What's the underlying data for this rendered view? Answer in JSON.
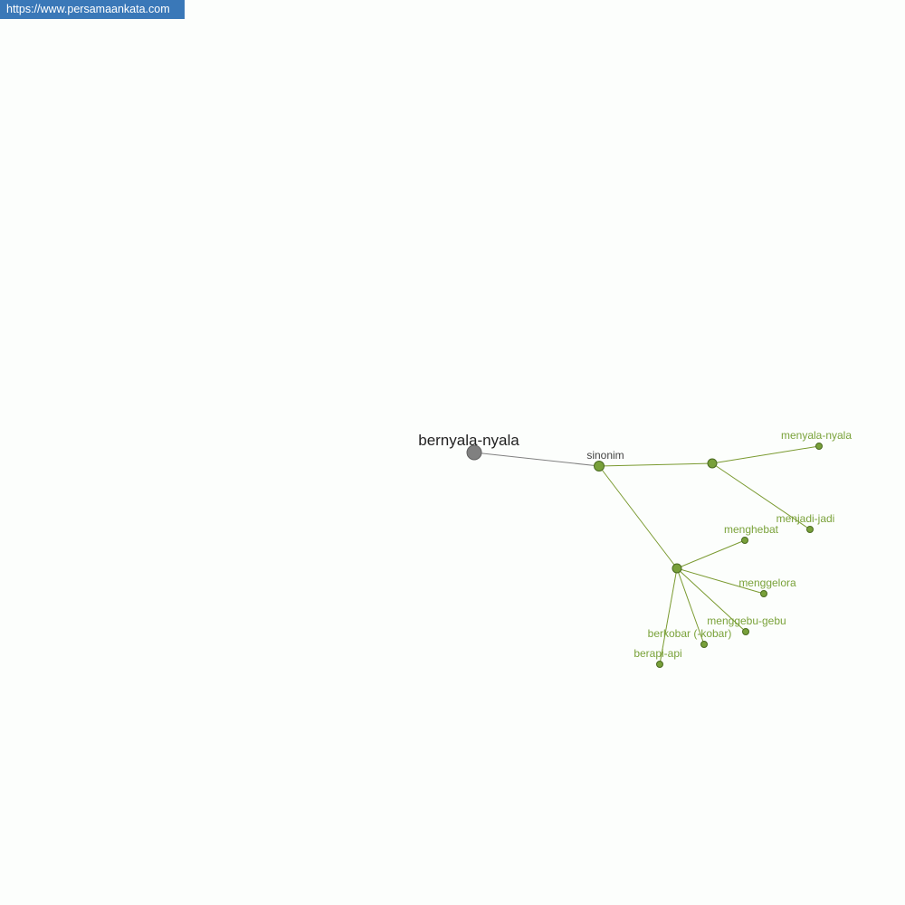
{
  "site_badge": "https://www.persamaankata.com",
  "graph": {
    "root": "bernyala-nyala",
    "relation": "sinonim",
    "synonyms": [
      "menyala-nyala",
      "menjadi-jadi",
      "menghebat",
      "menggelora",
      "menggebu-gebu",
      "berkobar (-kobar)",
      "berapi-api"
    ],
    "colors": {
      "root": "#808080",
      "node": "#78a03a",
      "label": "#7aa23a"
    }
  }
}
